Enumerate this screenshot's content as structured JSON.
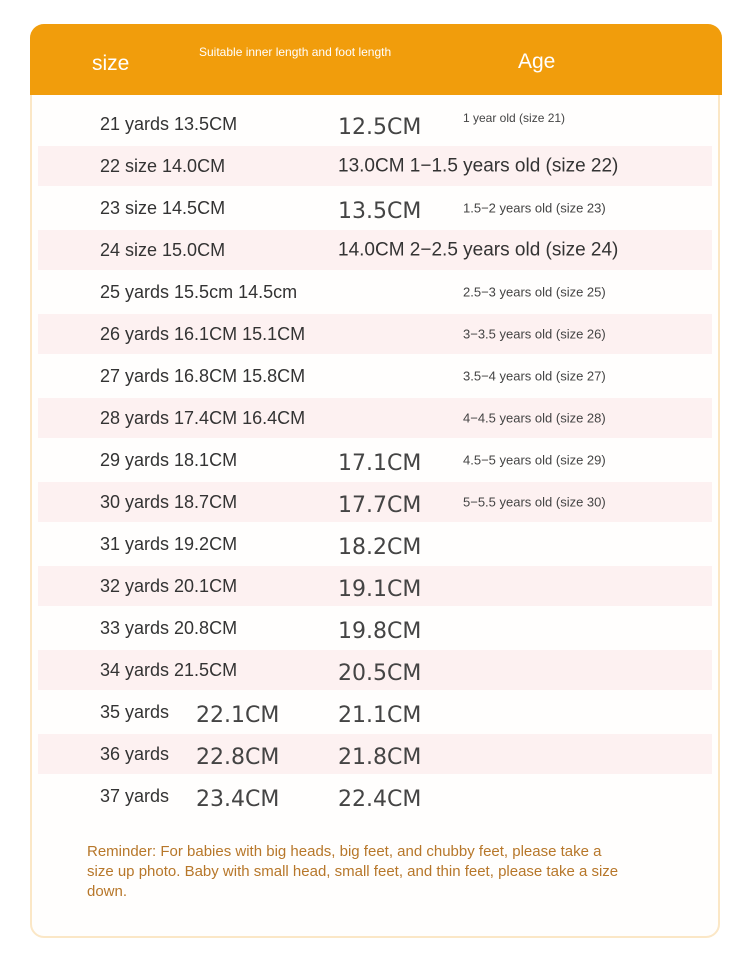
{
  "header": {
    "size": "size",
    "subtitle": "Suitable inner length and foot length",
    "age": "Age"
  },
  "table": {
    "rows": [
      {
        "c1": "21 yards 13.5CM",
        "c3": "12.5CM",
        "c4": "1 year old (size 21)"
      },
      {
        "c1": "22 size 14.0CM",
        "c3": "13.0CM 1−1.5 years old (size 22)"
      },
      {
        "c1": "23 size 14.5CM",
        "c3": "13.5CM",
        "c4": "1.5−2 years old (size 23)"
      },
      {
        "c1": "24 size 15.0CM",
        "c3": "14.0CM 2−2.5 years old (size 24)"
      },
      {
        "c1": "25 yards 15.5cm 14.5cm",
        "c4": "2.5−3 years old (size 25)"
      },
      {
        "c1": "26 yards 16.1CM 15.1CM",
        "c4": "3−3.5 years old (size 26)"
      },
      {
        "c1": "27 yards 16.8CM 15.8CM",
        "c4": "3.5−4 years old (size 27)"
      },
      {
        "c1": "28 yards 17.4CM 16.4CM",
        "c4": "4−4.5 years old (size 28)"
      },
      {
        "c1": "29 yards 18.1CM",
        "c3": "17.1CM",
        "c4": "4.5−5 years old (size 29)"
      },
      {
        "c1": "30 yards 18.7CM",
        "c3": "17.7CM",
        "c4": "5−5.5 years old (size 30)"
      },
      {
        "c1": "31 yards 19.2CM",
        "c3": "18.2CM"
      },
      {
        "c1": "32 yards 20.1CM",
        "c3": "19.1CM"
      },
      {
        "c1": "33 yards 20.8CM",
        "c3": "19.8CM"
      },
      {
        "c1": "34 yards 21.5CM",
        "c3": "20.5CM"
      },
      {
        "c1": "35 yards",
        "c2": "22.1CM",
        "c3": "21.1CM"
      },
      {
        "c1": "36 yards",
        "c2": "22.8CM",
        "c3": "21.8CM"
      },
      {
        "c1": "37 yards",
        "c2": "23.4CM",
        "c3": "22.4CM"
      }
    ]
  },
  "reminder": "Reminder: For babies with big heads, big feet, and chubby feet, please take a size up photo. Baby with small head, small feet, and thin feet, please take a size down."
}
